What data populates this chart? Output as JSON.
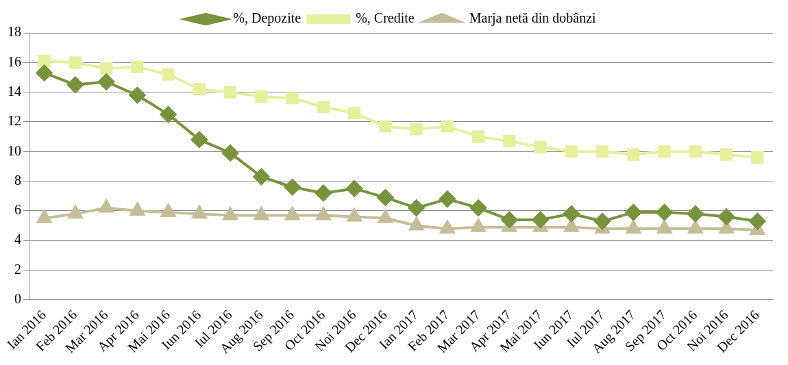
{
  "chart_data": {
    "type": "line",
    "categories": [
      "Ian 2016",
      "Feb 2016",
      "Mar 2016",
      "Apr 2016",
      "Mai 2016",
      "Iun 2016",
      "Iul 2016",
      "Aug 2016",
      "Sep 2016",
      "Oct 2016",
      "Noi 2016",
      "Dec 2016",
      "Ian 2017",
      "Feb 2017",
      "Mar 2017",
      "Apr 2017",
      "Mai 2017",
      "Iun 2017",
      "Iul 2017",
      "Aug 2017",
      "Sep 2017",
      "Oct 2016",
      "Noi 2016",
      "Dec 2016"
    ],
    "series": [
      {
        "name": "%, Depozite",
        "color": "#77933c",
        "marker": "diamond",
        "values": [
          15.3,
          14.5,
          14.7,
          13.8,
          12.5,
          10.8,
          9.9,
          8.3,
          7.6,
          7.2,
          7.5,
          6.9,
          6.2,
          6.8,
          6.2,
          5.4,
          5.4,
          5.8,
          5.3,
          5.9,
          5.9,
          5.8,
          5.6,
          5.3
        ]
      },
      {
        "name": "%, Credite",
        "color": "#e6ef9c",
        "marker": "square",
        "values": [
          16.1,
          16.0,
          15.6,
          15.7,
          15.2,
          14.2,
          14.0,
          13.7,
          13.6,
          13.0,
          12.6,
          11.7,
          11.5,
          11.7,
          11.0,
          10.7,
          10.3,
          10.0,
          10.0,
          9.8,
          10.0,
          10.0,
          9.8,
          9.6
        ]
      },
      {
        "name": "Marja netă din dobânzi",
        "color": "#c4bd97",
        "marker": "triangle",
        "values": [
          5.5,
          5.8,
          6.2,
          6.0,
          5.9,
          5.8,
          5.7,
          5.7,
          5.7,
          5.7,
          5.6,
          5.5,
          5.0,
          4.8,
          4.9,
          4.9,
          4.9,
          4.9,
          4.8,
          4.8,
          4.8,
          4.8,
          4.8,
          4.7
        ]
      }
    ],
    "ylim": [
      0,
      18
    ],
    "yticks": [
      0,
      2,
      4,
      6,
      8,
      10,
      12,
      14,
      16,
      18
    ],
    "grid": "y",
    "legend": "top",
    "line_style": "solid"
  }
}
